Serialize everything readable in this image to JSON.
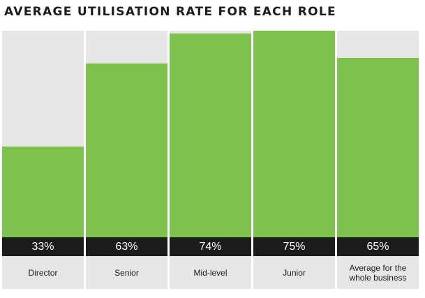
{
  "chart_data": {
    "type": "bar",
    "title": "AVERAGE UTILISATION RATE FOR EACH ROLE",
    "categories": [
      "Director",
      "Senior",
      "Mid-level",
      "Junior",
      "Average for the whole business"
    ],
    "values": [
      33,
      63,
      74,
      75,
      65
    ],
    "value_labels": [
      "33%",
      "63%",
      "74%",
      "75%",
      "65%"
    ],
    "ylim": [
      0,
      75
    ],
    "grid": false,
    "colors": {
      "bar": "#7dc24d",
      "track": "#e6e6e6",
      "value_strip": "#1c1c1c"
    }
  }
}
